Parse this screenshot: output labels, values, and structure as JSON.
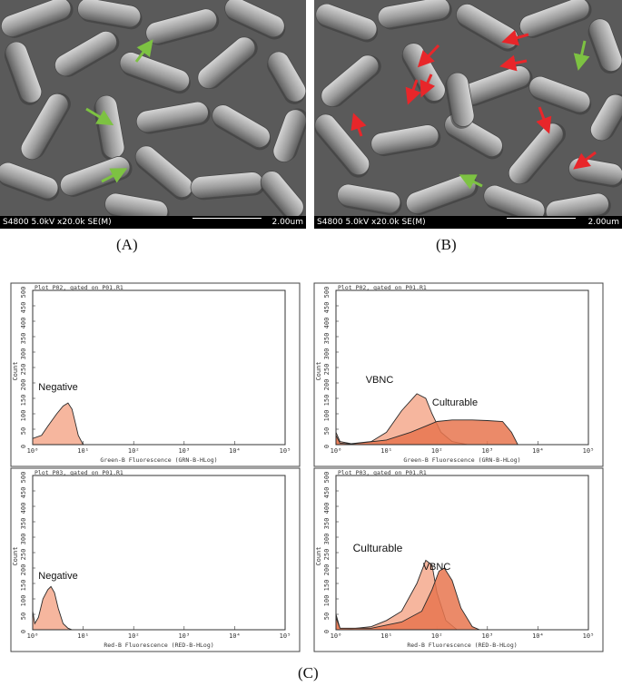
{
  "panels": {
    "A": {
      "label": "(A)",
      "info": "S4800 5.0kV x20.0k SE(M)",
      "scale": "2.00um"
    },
    "B": {
      "label": "(B)",
      "info": "S4800 5.0kV x20.0k SE(M)",
      "scale": "2.00um"
    },
    "C": {
      "label": "(C)"
    }
  },
  "colors": {
    "green_arrow": "#7dc242",
    "red_arrow": "#e8262a",
    "fill_light": "#f4a98d",
    "fill_dark": "#e8764f"
  },
  "chart_data": [
    {
      "type": "area",
      "header": "Plot P02, gated on P01.R1",
      "xlabel": "Green-B Fluorescence (GRN-B-HLog)",
      "ylabel": "Count",
      "xscale": "log",
      "xticks": [
        "10⁰",
        "10¹",
        "10²",
        "10³",
        "10⁴",
        "10⁵"
      ],
      "yticks": [
        "0",
        "50",
        "100",
        "150",
        "200",
        "250",
        "300",
        "350",
        "400",
        "450",
        "500"
      ],
      "ylim": [
        0,
        500
      ],
      "series": [
        {
          "name": "Negative",
          "x": [
            1,
            1.5,
            2,
            3,
            4,
            5,
            6,
            7,
            8,
            10
          ],
          "y": [
            20,
            30,
            60,
            100,
            125,
            135,
            115,
            70,
            30,
            0
          ]
        }
      ]
    },
    {
      "type": "area",
      "header": "Plot P02, gated on P01.R1",
      "xlabel": "Green-B Fluorescence (GRN-B-HLog)",
      "ylabel": "Count",
      "xscale": "log",
      "xticks": [
        "10⁰",
        "10¹",
        "10²",
        "10³",
        "10⁴",
        "10⁵"
      ],
      "yticks": [
        "0",
        "50",
        "100",
        "150",
        "200",
        "250",
        "300",
        "350",
        "400",
        "450",
        "500"
      ],
      "ylim": [
        0,
        500
      ],
      "series": [
        {
          "name": "VBNC",
          "x": [
            1,
            1.2,
            2,
            5,
            10,
            20,
            40,
            60,
            80,
            120,
            200,
            400
          ],
          "y": [
            40,
            10,
            3,
            10,
            40,
            110,
            165,
            150,
            100,
            40,
            10,
            0
          ]
        },
        {
          "name": "Culturable",
          "x": [
            1,
            1.2,
            2,
            10,
            30,
            60,
            100,
            200,
            500,
            1000,
            2000,
            3000,
            4000
          ],
          "y": [
            30,
            5,
            2,
            15,
            40,
            60,
            75,
            80,
            80,
            78,
            75,
            40,
            0
          ]
        }
      ]
    },
    {
      "type": "area",
      "header": "Plot P03, gated on P01.R1",
      "xlabel": "Red-B Fluorescence (RED-B-HLog)",
      "ylabel": "Count",
      "xscale": "log",
      "xticks": [
        "10⁰",
        "10¹",
        "10²",
        "10³",
        "10⁴",
        "10⁵"
      ],
      "yticks": [
        "0",
        "50",
        "100",
        "150",
        "200",
        "250",
        "300",
        "350",
        "400",
        "450",
        "500"
      ],
      "ylim": [
        0,
        500
      ],
      "series": [
        {
          "name": "Negative",
          "x": [
            1,
            1.1,
            1.3,
            1.6,
            2,
            2.3,
            2.7,
            3.2,
            4,
            5,
            6
          ],
          "y": [
            60,
            20,
            40,
            100,
            130,
            140,
            120,
            70,
            20,
            5,
            0
          ]
        }
      ]
    },
    {
      "type": "area",
      "header": "Plot P03, gated on P01.R1",
      "xlabel": "Red-B Fluorescence (RED-B-HLog)",
      "ylabel": "Count",
      "xscale": "log",
      "xticks": [
        "10⁰",
        "10¹",
        "10²",
        "10³",
        "10⁴",
        "10⁵"
      ],
      "yticks": [
        "0",
        "50",
        "100",
        "150",
        "200",
        "250",
        "300",
        "350",
        "400",
        "450",
        "500"
      ],
      "ylim": [
        0,
        500
      ],
      "series": [
        {
          "name": "Culturable",
          "x": [
            1,
            1.2,
            2,
            5,
            10,
            20,
            40,
            60,
            80,
            100,
            150,
            250
          ],
          "y": [
            50,
            5,
            3,
            10,
            30,
            60,
            150,
            225,
            210,
            120,
            30,
            0
          ]
        },
        {
          "name": "VBNC",
          "x": [
            1,
            1.2,
            5,
            20,
            50,
            80,
            110,
            140,
            200,
            300,
            500,
            700
          ],
          "y": [
            40,
            5,
            5,
            25,
            60,
            130,
            190,
            200,
            160,
            70,
            10,
            0
          ]
        }
      ]
    }
  ]
}
